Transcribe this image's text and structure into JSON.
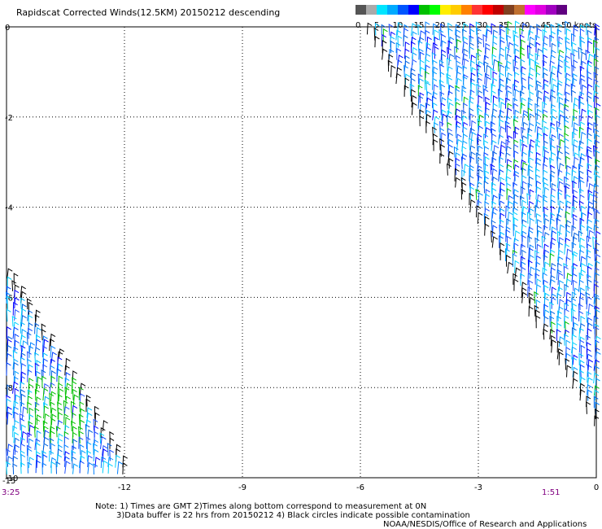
{
  "title": "Rapidscat Corrected Winds(12.5KM) 20150212 descending",
  "colorbar": {
    "labels": [
      "0",
      "5",
      "10",
      "15",
      "20",
      "25",
      "30",
      "35",
      "40",
      "45",
      ">50 knots"
    ],
    "colors": [
      "#555555",
      "#aaaaaa",
      "#00e5ff",
      "#00aaff",
      "#0055ff",
      "#0000ff",
      "#00c000",
      "#00ff00",
      "#ffee00",
      "#ffcc00",
      "#ff8000",
      "#ff3333",
      "#ff0000",
      "#c00000",
      "#804020",
      "#c07030",
      "#ff00ff",
      "#e000e0",
      "#a000c0",
      "#600080"
    ]
  },
  "chart_data": {
    "type": "wind-barbs",
    "title": "Rapidscat Corrected Winds(12.5KM) 20150212 descending",
    "xlim": [
      -15,
      0
    ],
    "ylim": [
      -10,
      0
    ],
    "x_ticks": [
      "-12",
      "-9",
      "-6",
      "-3",
      "0"
    ],
    "x_tick_values": [
      -12,
      -9,
      -6,
      -3,
      0
    ],
    "x_corner_label": "-15",
    "y_ticks": [
      "0",
      "-2",
      "-4",
      "-6",
      "-8",
      "-10"
    ],
    "y_tick_values": [
      0,
      -2,
      -4,
      -6,
      -8,
      -10
    ],
    "grid": true,
    "time_labels": [
      "3:25",
      "1:51"
    ],
    "swaths": [
      {
        "name": "east",
        "polygon": [
          [
            -6.0,
            0
          ],
          [
            0,
            0
          ],
          [
            0,
            -9.0
          ]
        ],
        "dominant_speed_knots": 10
      },
      {
        "name": "west",
        "polygon": [
          [
            -15,
            -5.4
          ],
          [
            -15,
            -10
          ],
          [
            -11.8,
            -10
          ]
        ],
        "dominant_speed_knots": 10,
        "green_patch": {
          "x": [
            -14.5,
            -13
          ],
          "y": [
            -8,
            -9.3
          ]
        }
      }
    ]
  },
  "notes": {
    "line1": "Note: 1) Times are GMT 2)Times along bottom correspond to measurement at 0N",
    "line2": "3)Data buffer is 22 hrs from 20150212 4) Black circles indicate possible contamination",
    "line3": "NOAA/NESDIS/Office of Research and Applications"
  }
}
